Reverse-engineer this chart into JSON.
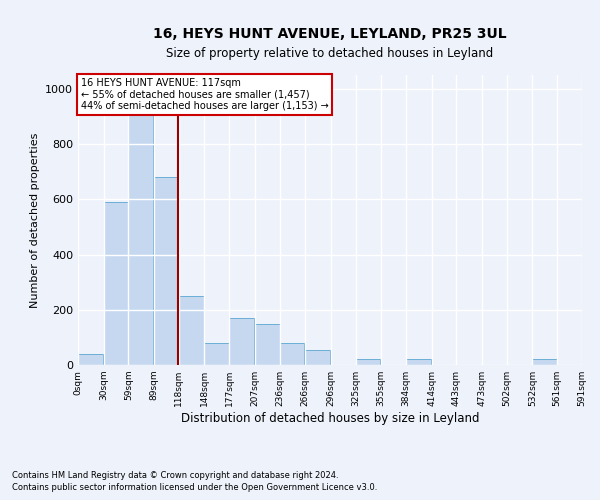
{
  "title1": "16, HEYS HUNT AVENUE, LEYLAND, PR25 3UL",
  "title2": "Size of property relative to detached houses in Leyland",
  "xlabel": "Distribution of detached houses by size in Leyland",
  "ylabel": "Number of detached properties",
  "footnote1": "Contains HM Land Registry data © Crown copyright and database right 2024.",
  "footnote2": "Contains public sector information licensed under the Open Government Licence v3.0.",
  "annotation_line1": "16 HEYS HUNT AVENUE: 117sqm",
  "annotation_line2": "← 55% of detached houses are smaller (1,457)",
  "annotation_line3": "44% of semi-detached houses are larger (1,153) →",
  "bar_left_edges": [
    0,
    30,
    59,
    89,
    118,
    148,
    177,
    207,
    236,
    266,
    296,
    325,
    355,
    384,
    414,
    443,
    473,
    502,
    532,
    561
  ],
  "bar_heights": [
    40,
    590,
    920,
    680,
    250,
    80,
    170,
    150,
    80,
    55,
    0,
    20,
    0,
    20,
    0,
    0,
    0,
    0,
    20,
    0
  ],
  "bin_width": 29,
  "red_line_x": 117,
  "bar_color": "#c5d8f0",
  "bar_edge_color": "#6baed6",
  "red_line_color": "#990000",
  "annotation_box_facecolor": "#ffffff",
  "annotation_box_edgecolor": "#cc0000",
  "background_color": "#eef2fb",
  "grid_color": "#ffffff",
  "ylim": [
    0,
    1050
  ],
  "yticks": [
    0,
    200,
    400,
    600,
    800,
    1000
  ],
  "xtick_labels": [
    "0sqm",
    "30sqm",
    "59sqm",
    "89sqm",
    "118sqm",
    "148sqm",
    "177sqm",
    "207sqm",
    "236sqm",
    "266sqm",
    "296sqm",
    "325sqm",
    "355sqm",
    "384sqm",
    "414sqm",
    "443sqm",
    "473sqm",
    "502sqm",
    "532sqm",
    "561sqm",
    "591sqm"
  ]
}
